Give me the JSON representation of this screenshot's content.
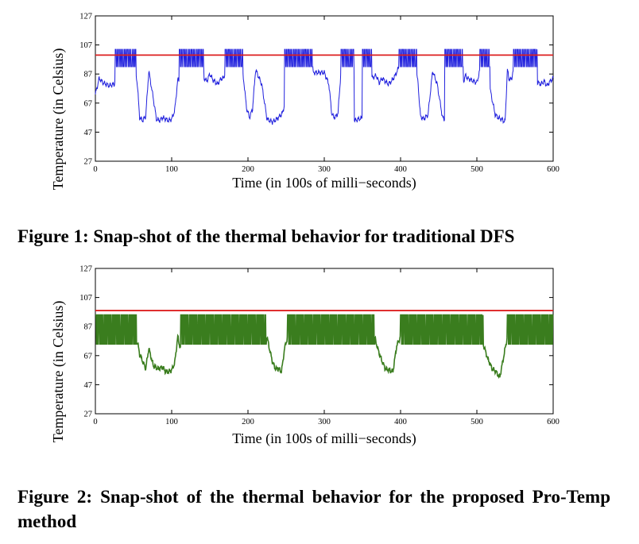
{
  "chart_data": [
    {
      "type": "line",
      "xlabel": "Time (in 100s of milli−seconds)",
      "ylabel": "Temperature (in Celsius)",
      "xlim": [
        0,
        600
      ],
      "ylim": [
        27,
        127
      ],
      "xticks": [
        "0",
        "100",
        "200",
        "300",
        "400",
        "500",
        "600"
      ],
      "yticks": [
        "27",
        "47",
        "67",
        "87",
        "107",
        "127"
      ],
      "grid": false,
      "colors": {
        "series": "#2020dd",
        "threshold": "#dd2020"
      },
      "threshold": 100,
      "series": [
        {
          "style": "oscillating",
          "x": [
            0,
            5,
            10,
            18,
            25,
            28,
            52,
            55,
            58,
            62,
            66,
            70,
            76,
            80,
            84,
            88,
            92,
            96,
            100,
            104,
            108,
            140,
            143,
            146,
            150,
            154,
            160,
            165,
            168,
            172,
            192,
            195,
            198,
            202,
            206,
            210,
            218,
            225,
            232,
            238,
            245,
            258,
            270,
            278,
            282,
            286,
            300,
            306,
            310,
            314,
            318,
            322,
            328,
            334,
            340,
            345,
            352,
            362,
            368,
            372,
            376,
            380,
            384,
            388,
            393,
            398,
            420,
            423,
            426,
            430,
            436,
            442,
            448,
            455,
            460,
            482,
            485,
            488,
            492,
            496,
            500,
            505,
            510,
            516,
            524,
            528,
            532,
            537,
            540,
            542,
            545,
            548,
            560,
            568,
            572,
            576,
            580,
            584,
            588,
            592,
            596,
            600
          ],
          "y": [
            73,
            84,
            81,
            79,
            80,
            92,
            92,
            80,
            57,
            55,
            58,
            89,
            70,
            56,
            55,
            57,
            56,
            55,
            56,
            62,
            83,
            83,
            84,
            82,
            87,
            83,
            80,
            84,
            84,
            92,
            92,
            80,
            64,
            57,
            63,
            90,
            80,
            56,
            54,
            56,
            60,
            85,
            83,
            84,
            82,
            88,
            88,
            80,
            59,
            57,
            60,
            90,
            74,
            56,
            55,
            56,
            57,
            84,
            86,
            81,
            84,
            82,
            80,
            82,
            86,
            92,
            92,
            80,
            58,
            56,
            59,
            89,
            80,
            57,
            55,
            81,
            86,
            84,
            83,
            82,
            81,
            92,
            92,
            80,
            59,
            57,
            56,
            54,
            90,
            84,
            83,
            90,
            90,
            83,
            82,
            84,
            81,
            80,
            82,
            79,
            82,
            84
          ],
          "oscillation_ranges": [
            [
              26,
              53
            ],
            [
              110,
              142
            ],
            [
              170,
              193
            ],
            [
              248,
              285
            ],
            [
              322,
              339
            ],
            [
              350,
              362
            ],
            [
              398,
              421
            ],
            [
              458,
              482
            ],
            [
              504,
              517
            ],
            [
              548,
              579
            ]
          ],
          "oscillation_low": 92,
          "oscillation_high": 104
        },
        {
          "style": "threshold",
          "x": [
            0,
            600
          ],
          "y": [
            100,
            100
          ]
        }
      ]
    },
    {
      "type": "line",
      "xlabel": "Time (in 100s of milli−seconds)",
      "ylabel": "Temperature (in Celsius)",
      "xlim": [
        0,
        600
      ],
      "ylim": [
        27,
        127
      ],
      "xticks": [
        "0",
        "100",
        "200",
        "300",
        "400",
        "500",
        "600"
      ],
      "yticks": [
        "27",
        "47",
        "67",
        "87",
        "107",
        "127"
      ],
      "grid": false,
      "colors": {
        "series": "#3a7d1e",
        "threshold": "#dd2020"
      },
      "threshold": 98,
      "series": [
        {
          "style": "oscillating",
          "x": [
            0,
            20,
            54,
            58,
            62,
            66,
            70,
            76,
            82,
            88,
            92,
            96,
            100,
            104,
            108,
            112,
            116,
            120,
            225,
            228,
            232,
            236,
            240,
            244,
            248,
            252,
            366,
            370,
            375,
            380,
            385,
            390,
            395,
            400,
            505,
            510,
            515,
            520,
            525,
            530,
            535,
            540,
            600
          ],
          "y": [
            78,
            81,
            80,
            68,
            63,
            58,
            72,
            60,
            58,
            59,
            56,
            56,
            57,
            62,
            80,
            70,
            82,
            80,
            80,
            72,
            63,
            58,
            58,
            56,
            72,
            80,
            80,
            72,
            64,
            58,
            57,
            56,
            74,
            80,
            80,
            72,
            64,
            58,
            56,
            52,
            66,
            80,
            80
          ],
          "oscillation_ranges": [
            [
              0,
              55
            ],
            [
              112,
              224
            ],
            [
              252,
              366
            ],
            [
              400,
              508
            ],
            [
              540,
              600
            ]
          ],
          "oscillation_low": 75,
          "oscillation_high": 95
        },
        {
          "style": "threshold",
          "x": [
            0,
            600
          ],
          "y": [
            98,
            98
          ]
        }
      ]
    }
  ],
  "captions": {
    "fig1": "Figure 1: Snap-shot of the thermal behavior for traditional DFS",
    "fig2": "Figure 2: Snap-shot of the thermal behavior for the proposed Pro-Temp method"
  }
}
